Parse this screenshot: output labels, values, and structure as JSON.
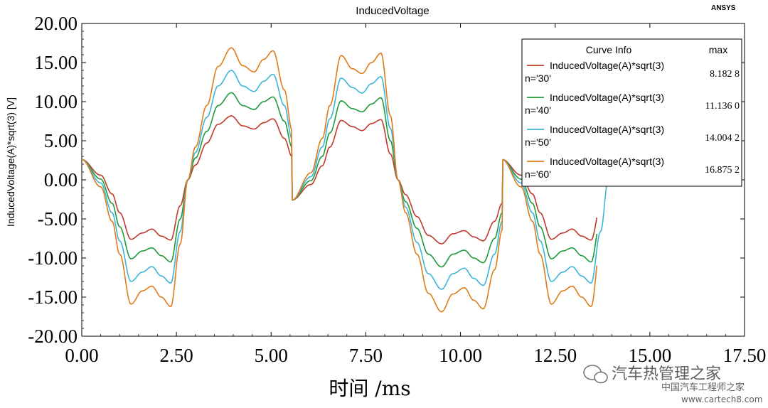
{
  "chart_data": {
    "type": "line",
    "title": "InducedVoltage",
    "brand": "ANSYS",
    "xlabel": "时间 /ms",
    "ylabel": "InducedVoltage(A)*sqrt(3) [V]",
    "xlim": [
      0,
      17.5
    ],
    "ylim": [
      -20,
      20
    ],
    "xticks": [
      "0.00",
      "2.50",
      "5.00",
      "7.50",
      "10.00",
      "12.50",
      "15.00",
      "17.50"
    ],
    "yticks": [
      "20.00",
      "15.00",
      "10.00",
      "5.00",
      "0.00",
      "-5.00",
      "-10.00",
      "-15.00",
      "-20.00"
    ],
    "grid": false,
    "legend_placement": "top-right",
    "legend": {
      "header": "Curve Info",
      "max_header": "max"
    },
    "series": [
      {
        "name": "InducedVoltage(A)*sqrt(3)",
        "param": "n='30'",
        "max": "8.182 8",
        "color": "#c0392b",
        "end_ms": 13.6,
        "x": [
          0,
          0.5,
          0.8,
          1.0,
          1.3,
          1.6,
          1.85,
          2.1,
          2.35,
          2.6,
          2.8,
          3.0,
          3.3,
          3.6,
          3.95,
          4.25,
          4.55,
          4.8,
          5.05,
          5.35,
          5.55
        ],
        "y": [
          2.6,
          0.6,
          -1.8,
          -4.2,
          -7.6,
          -6.8,
          -6.3,
          -7.2,
          -7.7,
          -3.3,
          0.0,
          1.9,
          4.7,
          7.1,
          8.18,
          6.9,
          6.5,
          7.3,
          7.8,
          5.3,
          3.0
        ]
      },
      {
        "name": "InducedVoltage(A)*sqrt(3)",
        "param": "n='40'",
        "max": "11.136 0",
        "color": "#1e9a3a",
        "end_ms": 13.6,
        "x": [
          0,
          0.5,
          0.8,
          1.0,
          1.3,
          1.6,
          1.85,
          2.1,
          2.35,
          2.6,
          2.8,
          3.0,
          3.3,
          3.6,
          3.95,
          4.25,
          4.55,
          4.8,
          5.05,
          5.35,
          5.55
        ],
        "y": [
          2.6,
          0.1,
          -3.0,
          -6.0,
          -10.1,
          -9.1,
          -8.7,
          -9.7,
          -10.5,
          -5.0,
          0.0,
          2.8,
          6.2,
          9.5,
          11.14,
          9.5,
          9.0,
          10.0,
          10.6,
          7.5,
          4.2
        ]
      },
      {
        "name": "InducedVoltage(A)*sqrt(3)",
        "param": "n='50'",
        "max": "14.004 2",
        "color": "#3bb5d8",
        "end_ms": 13.95,
        "x": [
          0,
          0.5,
          0.8,
          1.0,
          1.3,
          1.6,
          1.85,
          2.1,
          2.35,
          2.6,
          2.8,
          3.0,
          3.3,
          3.6,
          3.95,
          4.25,
          4.55,
          4.8,
          5.05,
          5.35,
          5.55
        ],
        "y": [
          2.6,
          -0.4,
          -4.2,
          -7.8,
          -13.0,
          -11.8,
          -11.1,
          -12.3,
          -13.2,
          -6.6,
          0.0,
          3.5,
          8.0,
          12.0,
          14.0,
          12.0,
          11.3,
          12.6,
          13.5,
          9.5,
          5.3
        ]
      },
      {
        "name": "InducedVoltage(A)*sqrt(3)",
        "param": "n='60'",
        "max": "16.875 2",
        "color": "#e07b1a",
        "end_ms": 13.6,
        "x": [
          0,
          0.5,
          0.8,
          1.0,
          1.3,
          1.6,
          1.85,
          2.1,
          2.35,
          2.6,
          2.8,
          3.0,
          3.3,
          3.6,
          3.95,
          4.25,
          4.55,
          4.8,
          5.05,
          5.35,
          5.55
        ],
        "y": [
          2.6,
          -0.9,
          -5.3,
          -9.5,
          -15.9,
          -14.2,
          -13.6,
          -15.0,
          -16.2,
          -8.2,
          0.0,
          4.2,
          9.5,
          14.5,
          16.88,
          14.6,
          13.8,
          15.4,
          16.5,
          11.5,
          6.4
        ]
      }
    ],
    "period_ms": 5.55
  },
  "watermark": {
    "line1": "汽车热管理之家",
    "line2": "中国汽车工程师之家",
    "line3": "www.cartech8.com"
  }
}
